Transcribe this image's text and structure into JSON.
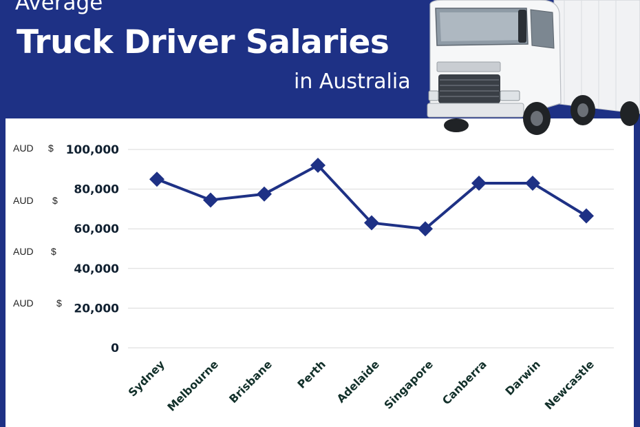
{
  "header": {
    "title_small": "Average",
    "title_big": "Truck Driver Salaries",
    "title_sub": "in Australia"
  },
  "colors": {
    "header_bg": "#1e3185",
    "line": "#1e3185",
    "grid": "#d9d9d9"
  },
  "image": {
    "icon": "truck-photo"
  },
  "currency_labels": [
    {
      "aud": "AUD",
      "symbol": "$"
    },
    {
      "aud": "AUD",
      "symbol": "$"
    },
    {
      "aud": "AUD",
      "symbol": "$"
    },
    {
      "aud": "AUD",
      "symbol": "$"
    }
  ],
  "chart_data": {
    "type": "line",
    "categories": [
      "Sydney",
      "Melbourne",
      "Brisbane",
      "Perth",
      "Adelaide",
      "Singapore",
      "Canberra",
      "Darwin",
      "Newcastle"
    ],
    "values": [
      85000,
      74500,
      77500,
      92000,
      63000,
      60000,
      83000,
      83000,
      66500
    ],
    "yticks": [
      "0",
      "20,000",
      "40,000",
      "60,000",
      "80,000",
      "100,000"
    ],
    "ylim": [
      0,
      100000
    ],
    "grid": true,
    "legend": "none",
    "marker": "diamond"
  }
}
